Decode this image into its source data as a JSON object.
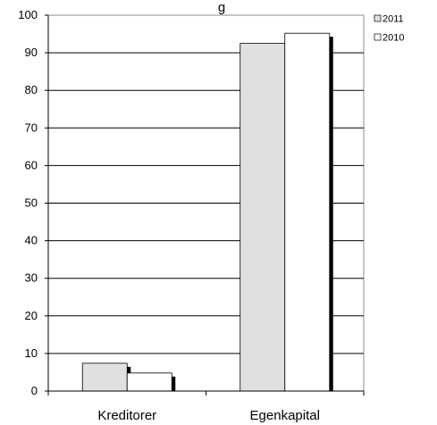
{
  "chart_data": {
    "type": "bar",
    "title_fragment": "g",
    "categories": [
      "Kreditorer",
      "Egenkapital"
    ],
    "series": [
      {
        "name": "2011",
        "values": [
          7.4,
          92.5
        ],
        "color": "#e0e0e0"
      },
      {
        "name": "2010",
        "values": [
          4.8,
          95.2
        ],
        "color": "#ffffff"
      }
    ],
    "ylim": [
      0,
      100
    ],
    "yticks": [
      0,
      10,
      20,
      30,
      40,
      50,
      60,
      70,
      80,
      90,
      100
    ],
    "grid": true,
    "legend_position": "top-right"
  }
}
